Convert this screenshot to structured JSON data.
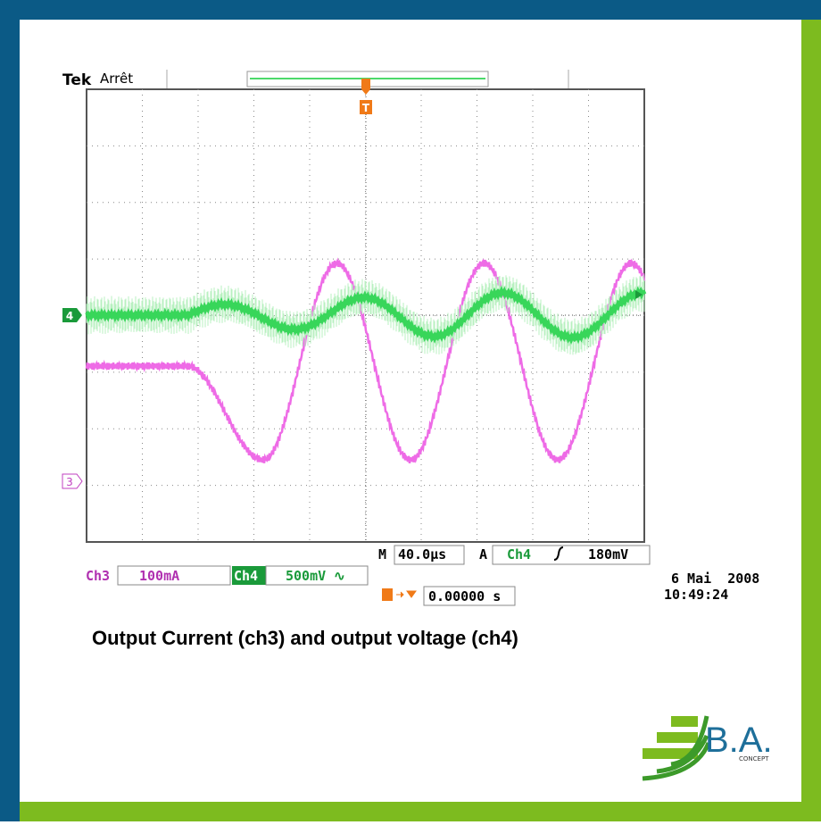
{
  "header": {
    "brand": "Tek",
    "status": "Arrêt"
  },
  "channels": {
    "ch3_label": "Ch3",
    "ch3_scale": "100mA",
    "ch4_label": "Ch4",
    "ch4_scale": "500mV ∿"
  },
  "timebase": {
    "prefix": "M",
    "value": "40.0µs"
  },
  "trigger": {
    "mode": "A",
    "source": "Ch4",
    "level": "180mV",
    "position": "0.00000 s"
  },
  "markers": {
    "ch4": "4",
    "ch3": "3",
    "trigger": "T"
  },
  "timestamp": {
    "date": "6 Mai  2008",
    "time": "10:49:24"
  },
  "caption": "Output Current (ch3) and output voltage (ch4)",
  "logo": {
    "name": "B.A.",
    "sub": "CONCEPT"
  }
}
